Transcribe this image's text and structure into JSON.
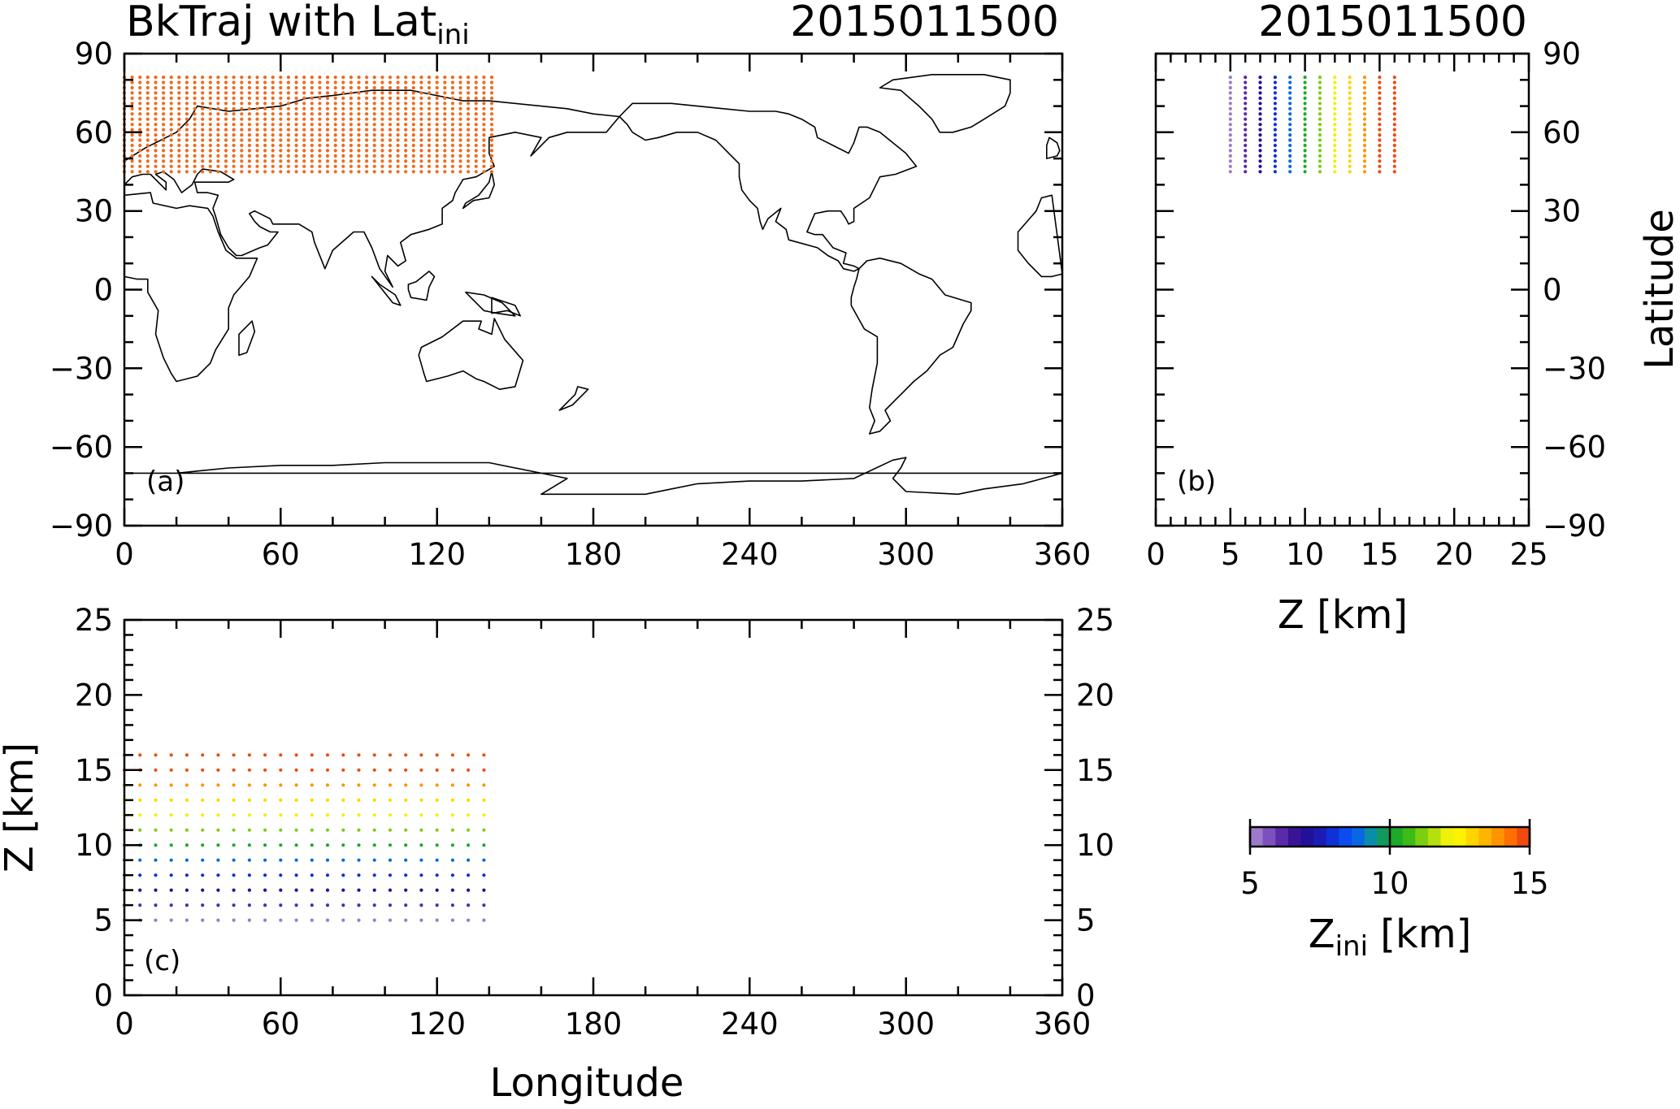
{
  "figure": {
    "title_left_main": "BkTraj with Lat",
    "title_left_sub": "ini",
    "title_date_a": "2015011500",
    "title_date_b": "2015011500"
  },
  "colorbar": {
    "label_main": "Z",
    "label_sub": "ini",
    "label_unit": " [km]",
    "range": [
      5,
      15
    ],
    "ticks": [
      "5",
      "10",
      "15"
    ],
    "colors": [
      "#9e79cc",
      "#7c50bd",
      "#5a2aa8",
      "#3a1496",
      "#23109a",
      "#1a1cb4",
      "#1030d8",
      "#0a4cf2",
      "#0868e4",
      "#0a8ea8",
      "#109a5c",
      "#1caa28",
      "#3cbc16",
      "#7cce10",
      "#b6e00c",
      "#eef20a",
      "#fff200",
      "#ffd400",
      "#ffb400",
      "#ff9400",
      "#ff7000",
      "#f04a10"
    ]
  },
  "chart_data": [
    {
      "type": "scatter",
      "panel": "(a)",
      "title": "BkTraj with Lat_ini",
      "date": "2015011500",
      "xlabel": "",
      "ylabel": "",
      "xlim": [
        0,
        360
      ],
      "ylim": [
        -90,
        90
      ],
      "xticks": [
        "0",
        "60",
        "120",
        "180",
        "240",
        "300",
        "360"
      ],
      "yticks": [
        "90",
        "60",
        "30",
        "0",
        "−30",
        "−60",
        "−90"
      ],
      "background": "world coastline map",
      "grid": false,
      "points": {
        "x_start": 0,
        "x_end": 141,
        "x_step": 3,
        "y_start": 45,
        "y_end": 81,
        "y_step": 2,
        "color": "#f06a1e"
      }
    },
    {
      "type": "scatter",
      "panel": "(b)",
      "date": "2015011500",
      "xlabel": "Z [km]",
      "ylabel": "Latitude",
      "xlim": [
        0,
        25
      ],
      "ylim": [
        -90,
        90
      ],
      "xticks": [
        "0",
        "5",
        "10",
        "15",
        "20",
        "25"
      ],
      "yticks": [
        "90",
        "60",
        "30",
        "0",
        "−30",
        "−60",
        "−90"
      ],
      "grid": false,
      "points": {
        "x_values": [
          5,
          6,
          7,
          8,
          9,
          10,
          11,
          12,
          13,
          14,
          15,
          16
        ],
        "y_start": 45,
        "y_end": 81,
        "y_step": 2,
        "colored_by": "Z_ini"
      }
    },
    {
      "type": "scatter",
      "panel": "(c)",
      "xlabel": "Longitude",
      "ylabel": "Z [km]",
      "xlim": [
        0,
        360
      ],
      "ylim": [
        0,
        25
      ],
      "xticks": [
        "0",
        "60",
        "120",
        "180",
        "240",
        "300",
        "360"
      ],
      "yticks": [
        "25",
        "20",
        "15",
        "10",
        "5",
        "0"
      ],
      "grid": false,
      "points": {
        "x_start": 0,
        "x_end": 141,
        "x_step": 6,
        "y_values": [
          5,
          6,
          7,
          8,
          9,
          10,
          11,
          12,
          13,
          14,
          15,
          16
        ],
        "colored_by": "Z_ini"
      }
    }
  ]
}
